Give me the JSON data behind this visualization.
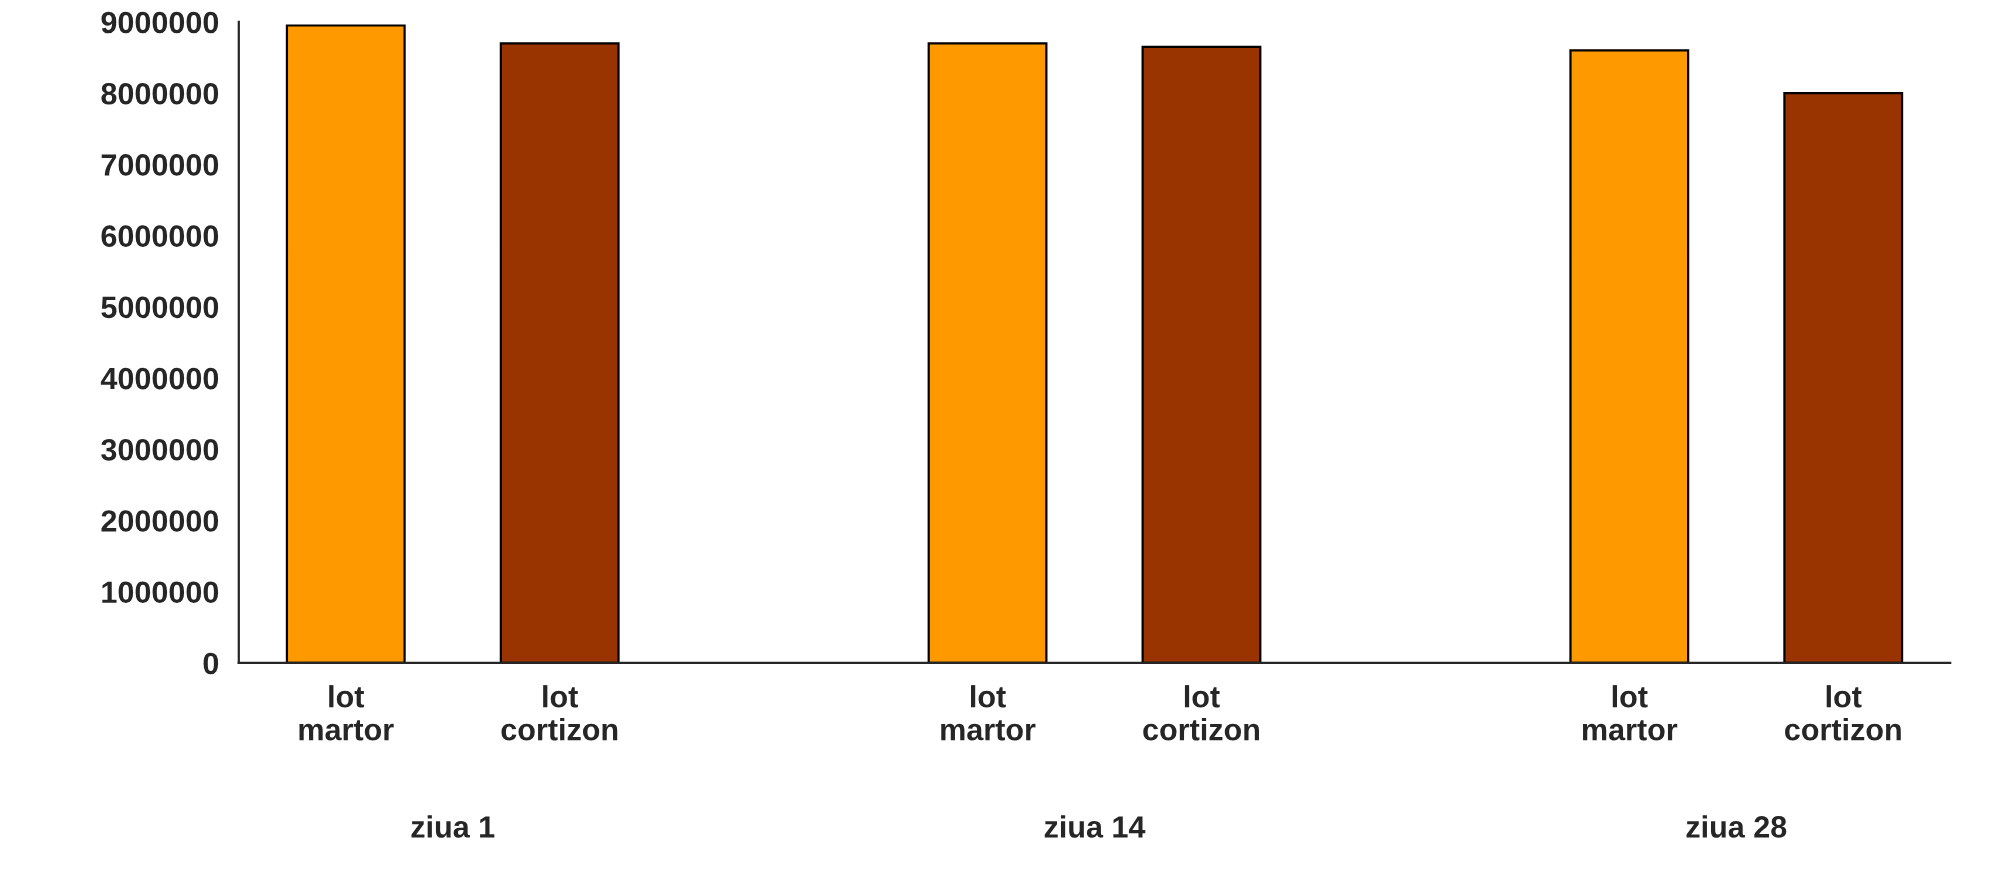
{
  "chart_data": {
    "type": "bar",
    "categories": [
      "lot\nmartor",
      "lot\ncortizon",
      null,
      "lot\nmartor",
      "lot\ncortizon",
      null,
      "lot\nmartor",
      "lot\ncortizon"
    ],
    "values": [
      8950000,
      8700000,
      null,
      8700000,
      8650000,
      null,
      8600000,
      8000000
    ],
    "colors": [
      "#ff9900",
      "#993300",
      null,
      "#ff9900",
      "#993300",
      null,
      "#ff9900",
      "#993300"
    ],
    "ylim": [
      0,
      9000000
    ],
    "yticks": [
      0,
      1000000,
      2000000,
      3000000,
      4000000,
      5000000,
      6000000,
      7000000,
      8000000,
      9000000
    ],
    "annotations": [
      "ziua 1",
      "ziua 14",
      "ziua 28"
    ],
    "grid": false,
    "legend": false
  }
}
